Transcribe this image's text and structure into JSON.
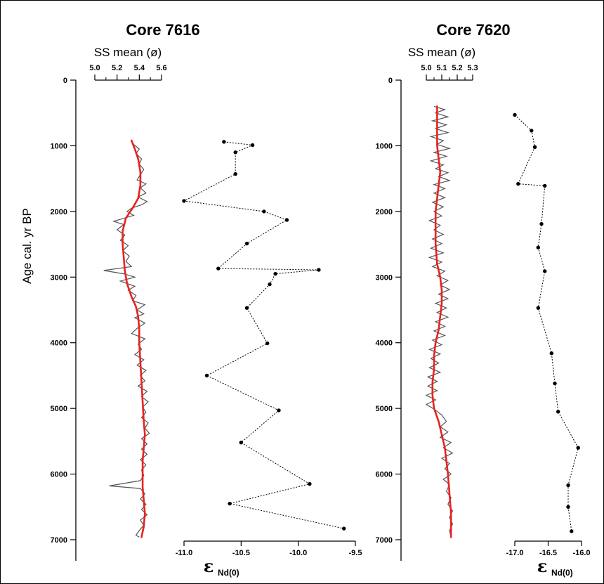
{
  "chart_data": [
    {
      "type": "line",
      "title": "Core 7616",
      "ylabel": "Age cal. yr BP",
      "ylim": [
        0,
        7000
      ],
      "yticks": [
        "0",
        "1000",
        "2000",
        "3000",
        "4000",
        "5000",
        "6000",
        "7000"
      ],
      "top_axis": {
        "label": "SS mean (ø)",
        "range": [
          5.0,
          5.6
        ],
        "ticks": [
          "5.0",
          "5.2",
          "5.4",
          "5.6"
        ]
      },
      "bottom_axis": {
        "label": "ε",
        "label_sub": "Nd(0)",
        "range": [
          -11.0,
          -9.5
        ],
        "ticks": [
          "-11.0",
          "-10.5",
          "-10.0",
          "-9.5"
        ]
      },
      "colors": {
        "raw": "#555555",
        "smooth": "#e8231f",
        "nd": "#000000"
      },
      "ss_raw": [
        [
          5.33,
          920
        ],
        [
          5.35,
          980
        ],
        [
          5.4,
          1050
        ],
        [
          5.37,
          1120
        ],
        [
          5.42,
          1200
        ],
        [
          5.4,
          1280
        ],
        [
          5.44,
          1360
        ],
        [
          5.41,
          1440
        ],
        [
          5.38,
          1520
        ],
        [
          5.46,
          1580
        ],
        [
          5.41,
          1640
        ],
        [
          5.46,
          1720
        ],
        [
          5.39,
          1780
        ],
        [
          5.47,
          1850
        ],
        [
          5.42,
          1900
        ],
        [
          5.33,
          1950
        ],
        [
          5.29,
          2000
        ],
        [
          5.35,
          2060
        ],
        [
          5.17,
          2150
        ],
        [
          5.26,
          2200
        ],
        [
          5.2,
          2280
        ],
        [
          5.27,
          2360
        ],
        [
          5.23,
          2440
        ],
        [
          5.3,
          2520
        ],
        [
          5.25,
          2600
        ],
        [
          5.31,
          2680
        ],
        [
          5.28,
          2760
        ],
        [
          5.33,
          2840
        ],
        [
          5.08,
          2900
        ],
        [
          5.26,
          2950
        ],
        [
          5.36,
          3000
        ],
        [
          5.23,
          3060
        ],
        [
          5.36,
          3140
        ],
        [
          5.3,
          3200
        ],
        [
          5.37,
          3280
        ],
        [
          5.34,
          3360
        ],
        [
          5.45,
          3420
        ],
        [
          5.38,
          3500
        ],
        [
          5.44,
          3560
        ],
        [
          5.36,
          3620
        ],
        [
          5.45,
          3700
        ],
        [
          5.38,
          3780
        ],
        [
          5.33,
          3860
        ],
        [
          5.45,
          3940
        ],
        [
          5.39,
          4020
        ],
        [
          5.42,
          4100
        ],
        [
          5.36,
          4180
        ],
        [
          5.44,
          4260
        ],
        [
          5.38,
          4340
        ],
        [
          5.46,
          4420
        ],
        [
          5.41,
          4500
        ],
        [
          5.45,
          4580
        ],
        [
          5.39,
          4660
        ],
        [
          5.47,
          4740
        ],
        [
          5.42,
          4820
        ],
        [
          5.48,
          4900
        ],
        [
          5.43,
          4980
        ],
        [
          5.46,
          5060
        ],
        [
          5.42,
          5140
        ],
        [
          5.48,
          5220
        ],
        [
          5.45,
          5300
        ],
        [
          5.49,
          5380
        ],
        [
          5.42,
          5460
        ],
        [
          5.47,
          5540
        ],
        [
          5.42,
          5620
        ],
        [
          5.47,
          5700
        ],
        [
          5.41,
          5780
        ],
        [
          5.46,
          5860
        ],
        [
          5.42,
          5940
        ],
        [
          5.44,
          6020
        ],
        [
          5.41,
          6100
        ],
        [
          5.13,
          6180
        ],
        [
          5.41,
          6220
        ],
        [
          5.45,
          6300
        ],
        [
          5.41,
          6380
        ],
        [
          5.46,
          6460
        ],
        [
          5.42,
          6540
        ],
        [
          5.47,
          6620
        ],
        [
          5.41,
          6700
        ],
        [
          5.44,
          6780
        ],
        [
          5.4,
          6860
        ],
        [
          5.37,
          6930
        ],
        [
          5.4,
          6960
        ]
      ],
      "ss_smooth": [
        [
          5.33,
          920
        ],
        [
          5.36,
          1050
        ],
        [
          5.39,
          1200
        ],
        [
          5.41,
          1400
        ],
        [
          5.41,
          1600
        ],
        [
          5.39,
          1800
        ],
        [
          5.34,
          1950
        ],
        [
          5.28,
          2100
        ],
        [
          5.25,
          2300
        ],
        [
          5.25,
          2500
        ],
        [
          5.26,
          2700
        ],
        [
          5.27,
          2900
        ],
        [
          5.29,
          3100
        ],
        [
          5.33,
          3300
        ],
        [
          5.37,
          3450
        ],
        [
          5.39,
          3600
        ],
        [
          5.4,
          3800
        ],
        [
          5.4,
          4000
        ],
        [
          5.41,
          4300
        ],
        [
          5.42,
          4600
        ],
        [
          5.43,
          4900
        ],
        [
          5.44,
          5200
        ],
        [
          5.45,
          5400
        ],
        [
          5.44,
          5600
        ],
        [
          5.43,
          5800
        ],
        [
          5.43,
          6000
        ],
        [
          5.43,
          6200
        ],
        [
          5.44,
          6400
        ],
        [
          5.45,
          6600
        ],
        [
          5.44,
          6800
        ],
        [
          5.42,
          6960
        ]
      ],
      "nd_points": [
        [
          -10.65,
          940
        ],
        [
          -10.4,
          990
        ],
        [
          -10.55,
          1100
        ],
        [
          -10.55,
          1430
        ],
        [
          -11.0,
          1840
        ],
        [
          -10.3,
          2000
        ],
        [
          -10.1,
          2130
        ],
        [
          -10.45,
          2490
        ],
        [
          -10.7,
          2870
        ],
        [
          -9.82,
          2890
        ],
        [
          -10.2,
          2950
        ],
        [
          -10.25,
          3110
        ],
        [
          -10.45,
          3470
        ],
        [
          -10.27,
          4010
        ],
        [
          -10.8,
          4500
        ],
        [
          -10.17,
          5030
        ],
        [
          -10.5,
          5520
        ],
        [
          -9.9,
          6150
        ],
        [
          -10.6,
          6450
        ],
        [
          -9.6,
          6830
        ]
      ]
    },
    {
      "type": "line",
      "title": "Core 7620",
      "ylim": [
        0,
        7000
      ],
      "yticks": [
        "0",
        "1000",
        "2000",
        "3000",
        "4000",
        "5000",
        "6000",
        "7000"
      ],
      "top_axis": {
        "label": "SS mean (ø)",
        "range": [
          5.0,
          5.3
        ],
        "ticks": [
          "5.0",
          "5.1",
          "5.2",
          "5.3"
        ]
      },
      "bottom_axis": {
        "label": "ε",
        "label_sub": "Nd(0)",
        "range": [
          -17.0,
          -16.0
        ],
        "ticks": [
          "-17.0",
          "-16.5",
          "-16.0"
        ]
      },
      "colors": {
        "raw": "#555555",
        "smooth": "#e8231f",
        "nd": "#000000"
      },
      "ss_raw": [
        [
          5.05,
          400
        ],
        [
          5.12,
          450
        ],
        [
          5.06,
          500
        ],
        [
          5.14,
          560
        ],
        [
          5.04,
          620
        ],
        [
          5.13,
          680
        ],
        [
          5.06,
          740
        ],
        [
          5.14,
          800
        ],
        [
          5.03,
          860
        ],
        [
          5.11,
          920
        ],
        [
          5.07,
          980
        ],
        [
          5.15,
          1040
        ],
        [
          5.05,
          1100
        ],
        [
          5.13,
          1160
        ],
        [
          5.03,
          1230
        ],
        [
          5.11,
          1290
        ],
        [
          5.06,
          1350
        ],
        [
          5.14,
          1410
        ],
        [
          5.08,
          1470
        ],
        [
          5.15,
          1530
        ],
        [
          5.05,
          1590
        ],
        [
          5.12,
          1650
        ],
        [
          5.05,
          1720
        ],
        [
          5.12,
          1790
        ],
        [
          5.04,
          1860
        ],
        [
          5.11,
          1930
        ],
        [
          5.05,
          2000
        ],
        [
          5.1,
          2070
        ],
        [
          5.02,
          2140
        ],
        [
          5.09,
          2210
        ],
        [
          5.05,
          2280
        ],
        [
          5.11,
          2350
        ],
        [
          5.04,
          2420
        ],
        [
          5.1,
          2490
        ],
        [
          5.03,
          2560
        ],
        [
          5.11,
          2630
        ],
        [
          5.02,
          2700
        ],
        [
          5.1,
          2770
        ],
        [
          5.04,
          2840
        ],
        [
          5.12,
          2910
        ],
        [
          5.07,
          2980
        ],
        [
          5.14,
          3050
        ],
        [
          5.09,
          3120
        ],
        [
          5.15,
          3190
        ],
        [
          5.08,
          3260
        ],
        [
          5.14,
          3330
        ],
        [
          5.06,
          3400
        ],
        [
          5.13,
          3470
        ],
        [
          5.07,
          3540
        ],
        [
          5.14,
          3610
        ],
        [
          5.06,
          3680
        ],
        [
          5.12,
          3750
        ],
        [
          5.05,
          3820
        ],
        [
          5.12,
          3890
        ],
        [
          5.04,
          3960
        ],
        [
          5.1,
          4030
        ],
        [
          5.02,
          4100
        ],
        [
          5.09,
          4170
        ],
        [
          5.03,
          4240
        ],
        [
          5.08,
          4310
        ],
        [
          5.02,
          4380
        ],
        [
          5.09,
          4450
        ],
        [
          5.01,
          4520
        ],
        [
          5.07,
          4590
        ],
        [
          5.01,
          4660
        ],
        [
          5.07,
          4730
        ],
        [
          5.0,
          4800
        ],
        [
          5.06,
          4870
        ],
        [
          5.0,
          4940
        ],
        [
          5.05,
          5010
        ],
        [
          5.1,
          5100
        ],
        [
          5.13,
          5200
        ],
        [
          5.09,
          5280
        ],
        [
          5.14,
          5360
        ],
        [
          5.09,
          5440
        ],
        [
          5.16,
          5520
        ],
        [
          5.11,
          5600
        ],
        [
          5.17,
          5680
        ],
        [
          5.1,
          5760
        ],
        [
          5.15,
          5840
        ],
        [
          5.12,
          5920
        ],
        [
          5.16,
          6000
        ],
        [
          5.11,
          6080
        ],
        [
          5.15,
          6160
        ],
        [
          5.13,
          6260
        ],
        [
          5.16,
          6360
        ],
        [
          5.14,
          6460
        ],
        [
          5.17,
          6560
        ],
        [
          5.15,
          6660
        ],
        [
          5.17,
          6760
        ],
        [
          5.15,
          6860
        ],
        [
          5.16,
          6960
        ]
      ],
      "ss_smooth": [
        [
          5.07,
          400
        ],
        [
          5.07,
          700
        ],
        [
          5.07,
          1000
        ],
        [
          5.08,
          1200
        ],
        [
          5.09,
          1400
        ],
        [
          5.08,
          1600
        ],
        [
          5.07,
          1800
        ],
        [
          5.06,
          2000
        ],
        [
          5.06,
          2200
        ],
        [
          5.06,
          2500
        ],
        [
          5.07,
          2800
        ],
        [
          5.09,
          3000
        ],
        [
          5.1,
          3200
        ],
        [
          5.1,
          3400
        ],
        [
          5.09,
          3600
        ],
        [
          5.08,
          3800
        ],
        [
          5.06,
          4000
        ],
        [
          5.05,
          4200
        ],
        [
          5.05,
          4400
        ],
        [
          5.04,
          4600
        ],
        [
          5.04,
          4800
        ],
        [
          5.05,
          5000
        ],
        [
          5.08,
          5200
        ],
        [
          5.1,
          5400
        ],
        [
          5.12,
          5600
        ],
        [
          5.13,
          5800
        ],
        [
          5.14,
          6000
        ],
        [
          5.15,
          6300
        ],
        [
          5.16,
          6600
        ],
        [
          5.16,
          6960
        ]
      ],
      "nd_points": [
        [
          -17.0,
          530
        ],
        [
          -16.75,
          770
        ],
        [
          -16.7,
          1020
        ],
        [
          -16.95,
          1580
        ],
        [
          -16.55,
          1610
        ],
        [
          -16.6,
          2190
        ],
        [
          -16.65,
          2550
        ],
        [
          -16.55,
          2910
        ],
        [
          -16.65,
          3470
        ],
        [
          -16.45,
          4160
        ],
        [
          -16.4,
          4620
        ],
        [
          -16.35,
          5050
        ],
        [
          -16.05,
          5600
        ],
        [
          -16.2,
          6170
        ],
        [
          -16.2,
          6500
        ],
        [
          -16.15,
          6870
        ]
      ]
    }
  ]
}
